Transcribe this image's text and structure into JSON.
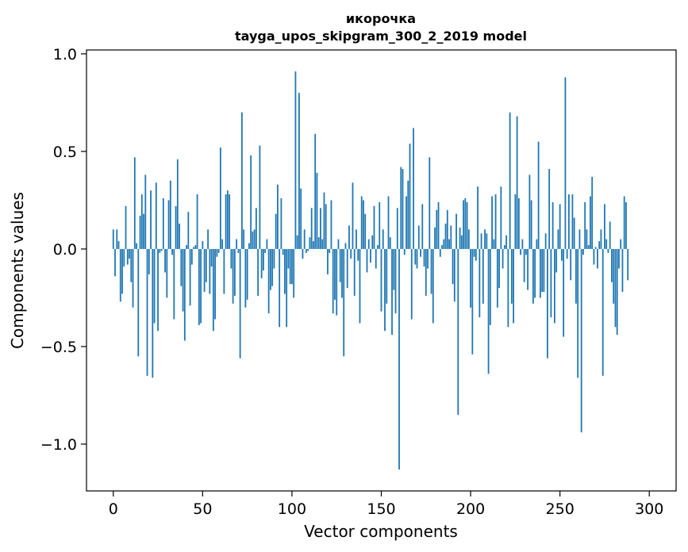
{
  "chart_data": {
    "type": "bar",
    "title_line1": "икорочка",
    "title_line2": "tayga_upos_skipgram_300_2_2019 model",
    "xlabel": "Vector components",
    "ylabel": "Components values",
    "xlim": [
      -15,
      315
    ],
    "ylim": [
      -1.24,
      1.02
    ],
    "xticks": [
      0,
      50,
      100,
      150,
      200,
      250,
      300
    ],
    "xtick_labels": [
      "0",
      "50",
      "100",
      "150",
      "200",
      "250",
      "300"
    ],
    "yticks": [
      1.0,
      0.5,
      0.0,
      -0.5,
      -1.0
    ],
    "ytick_labels": [
      "1.0",
      "0.5",
      "0.0",
      "−0.5",
      "−1.0"
    ],
    "bar_color": "#1f77b4",
    "grid": false,
    "values": [
      0.1,
      -0.14,
      0.1,
      0.04,
      -0.27,
      -0.23,
      -0.09,
      0.22,
      -0.08,
      -0.05,
      -0.17,
      -0.3,
      0.47,
      0.03,
      -0.55,
      0.17,
      0.28,
      0.18,
      0.38,
      -0.65,
      -0.13,
      0.3,
      -0.66,
      -0.38,
      0.34,
      -0.42,
      -0.02,
      -0.01,
      0.26,
      -0.12,
      -0.25,
      0.25,
      0.35,
      -0.03,
      -0.36,
      0.22,
      0.46,
      0.13,
      -0.19,
      -0.32,
      -0.47,
      0.02,
      0.19,
      -0.29,
      -0.08,
      0.01,
      0.02,
      0.28,
      -0.39,
      -0.38,
      0.04,
      -0.22,
      -0.17,
      0.1,
      -0.23,
      -0.09,
      -0.42,
      -0.36,
      -0.04,
      -0.02,
      0.52,
      0.05,
      -0.23,
      0.28,
      0.3,
      0.28,
      -0.1,
      -0.28,
      -0.24,
      0.05,
      -0.02,
      -0.56,
      0.7,
      0.1,
      -0.3,
      -0.26,
      0.03,
      0.48,
      0.09,
      0.1,
      0.21,
      -0.24,
      0.53,
      -0.15,
      -0.11,
      -0.02,
      0.05,
      -0.33,
      -0.21,
      -0.19,
      -0.1,
      0.18,
      0.33,
      -0.4,
      0.26,
      -0.03,
      -0.23,
      -0.4,
      -0.1,
      -0.18,
      -0.18,
      -0.25,
      0.91,
      0.07,
      0.8,
      0.31,
      -0.05,
      0.1,
      -0.02,
      -0.01,
      0.06,
      0.21,
      0.04,
      0.59,
      0.39,
      0.06,
      0.21,
      0.05,
      0.29,
      0.23,
      -0.13,
      -0.02,
      0.25,
      -0.33,
      -0.26,
      -0.34,
      0.05,
      -0.17,
      -0.25,
      -0.55,
      0.03,
      -0.2,
      0.12,
      -0.05,
      0.34,
      -0.24,
      0.1,
      -0.06,
      -0.38,
      0.27,
      0.25,
      0.18,
      -0.12,
      0.05,
      -0.07,
      0.07,
      0.22,
      -0.1,
      0.02,
      0.24,
      -0.32,
      0.1,
      -0.42,
      -0.28,
      0.27,
      0.06,
      -0.44,
      -0.21,
      -0.33,
      0.21,
      -1.13,
      0.42,
      0.41,
      -0.03,
      0.27,
      0.35,
      0.54,
      -0.36,
      0.62,
      -0.08,
      -0.1,
      0.12,
      -0.04,
      0.23,
      -0.09,
      -0.24,
      -0.1,
      0.47,
      -0.23,
      -0.38,
      0.11,
      0.2,
      0.24,
      -0.04,
      0.02,
      0.05,
      0.13,
      0.2,
      0.05,
      0.12,
      -0.18,
      -0.27,
      0.18,
      -0.85,
      0.11,
      0.07,
      0.25,
      0.26,
      0.24,
      0.1,
      -0.3,
      -0.54,
      -0.04,
      -0.06,
      0.32,
      -0.35,
      0.08,
      -0.28,
      0.1,
      0.08,
      -0.64,
      -0.39,
      0.27,
      0.05,
      0.28,
      -0.3,
      -0.2,
      0.32,
      -0.1,
      0.02,
      0.07,
      -0.4,
      0.7,
      -0.28,
      -0.38,
      0.28,
      0.68,
      0.26,
      -0.03,
      0.05,
      -0.17,
      -0.03,
      -0.21,
      0.38,
      0.25,
      -0.28,
      -0.25,
      0.05,
      0.55,
      -0.25,
      -0.22,
      -0.22,
      0.08,
      -0.56,
      0.41,
      -0.35,
      0.24,
      -0.38,
      -0.12,
      0.1,
      0.23,
      -0.06,
      -0.45,
      0.88,
      -0.05,
      0.28,
      -0.16,
      0.28,
      0.16,
      -0.28,
      -0.66,
      0.1,
      -0.94,
      -0.03,
      0.24,
      0.1,
      0.02,
      0.27,
      0.37,
      -0.08,
      0.01,
      -0.1,
      0.04,
      0.1,
      -0.65,
      0.23,
      0.05,
      -0.02,
      0.14,
      -0.17,
      -0.28,
      -0.4,
      -0.44,
      -0.1,
      0.05,
      -0.22,
      0.27,
      0.24,
      -0.16
    ]
  }
}
